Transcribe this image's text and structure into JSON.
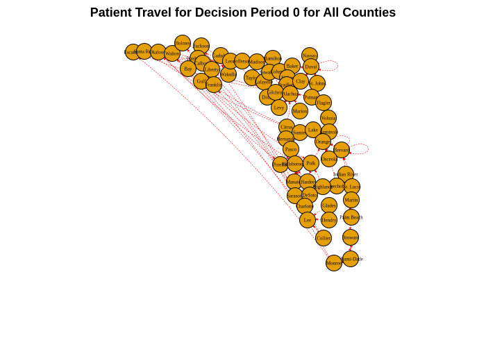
{
  "title": "Patient Travel for Decision Period 0 for All Counties",
  "colors": {
    "node_fill": "#E69F00",
    "node_stroke": "#000000",
    "edge": "#FF0000"
  },
  "nodes": [
    "Escambia",
    "Santa Rosa",
    "Okaloosa",
    "Walton",
    "Holmes",
    "Jackson",
    "Washington",
    "Calhoun",
    "Bay",
    "Liberty",
    "Gadsden",
    "Gulf",
    "Franklin",
    "Wakulla",
    "Leon",
    "Jefferson",
    "Madison",
    "Hamilton",
    "Taylor",
    "Lafayette",
    "Suwannee",
    "Columbia",
    "Baker",
    "Nassau",
    "Duval",
    "Union",
    "Bradford",
    "Clay",
    "St. Johns",
    "Dixie",
    "Gilchrist",
    "Alachua",
    "Putnam",
    "Flagler",
    "Levy",
    "Marion",
    "Volusia",
    "Citrus",
    "Sumter",
    "Lake",
    "Seminole",
    "Orange",
    "Hernando",
    "Pasco",
    "Brevard",
    "Osceola",
    "Pinellas",
    "Hillsborough",
    "Polk",
    "Indian River",
    "Manatee",
    "Hardee",
    "Okeechobee",
    "St. Lucie",
    "Highlands",
    "Sarasota",
    "DeSoto",
    "Martin",
    "Charlotte",
    "Glades",
    "Palm Beach",
    "Lee",
    "Hendry",
    "Broward",
    "Collier",
    "Miami-Dade",
    "Monroe"
  ],
  "edges": [
    [
      "Escambia",
      "Alachua"
    ],
    [
      "Escambia",
      "Leon"
    ],
    [
      "Santa Rosa",
      "Orange"
    ],
    [
      "Santa Rosa",
      "Leon"
    ],
    [
      "Okaloosa",
      "Hillsborough"
    ],
    [
      "Okaloosa",
      "Alachua"
    ],
    [
      "Walton",
      "Pinellas"
    ],
    [
      "Walton",
      "Leon"
    ],
    [
      "Holmes",
      "Leon"
    ],
    [
      "Jackson",
      "Leon"
    ],
    [
      "Washington",
      "Leon"
    ],
    [
      "Calhoun",
      "Leon"
    ],
    [
      "Bay",
      "Leon"
    ],
    [
      "Bay",
      "Sumter"
    ],
    [
      "Liberty",
      "Leon"
    ],
    [
      "Gadsden",
      "Leon"
    ],
    [
      "Gulf",
      "Leon"
    ],
    [
      "Gulf",
      "Polk"
    ],
    [
      "Franklin",
      "Leon"
    ],
    [
      "Wakulla",
      "Leon"
    ],
    [
      "Jefferson",
      "Leon"
    ],
    [
      "Madison",
      "Leon"
    ],
    [
      "Taylor",
      "Leon"
    ],
    [
      "Hamilton",
      "Alachua"
    ],
    [
      "Lafayette",
      "Alachua"
    ],
    [
      "Suwannee",
      "Alachua"
    ],
    [
      "Columbia",
      "Alachua"
    ],
    [
      "Baker",
      "Duval"
    ],
    [
      "Nassau",
      "Duval"
    ],
    [
      "Union",
      "Alachua"
    ],
    [
      "Bradford",
      "Alachua"
    ],
    [
      "Clay",
      "Duval"
    ],
    [
      "St. Johns",
      "Duval"
    ],
    [
      "Dixie",
      "Alachua"
    ],
    [
      "Gilchrist",
      "Alachua"
    ],
    [
      "Putnam",
      "Alachua"
    ],
    [
      "Flagler",
      "Volusia"
    ],
    [
      "Levy",
      "Alachua"
    ],
    [
      "Marion",
      "Alachua"
    ],
    [
      "Citrus",
      "Alachua"
    ],
    [
      "Sumter",
      "Lake"
    ],
    [
      "Lake",
      "Orange"
    ],
    [
      "Seminole",
      "Orange"
    ],
    [
      "Hernando",
      "Pasco"
    ],
    [
      "Hernando",
      "Hillsborough"
    ],
    [
      "Pasco",
      "Hillsborough"
    ],
    [
      "Brevard",
      "Orange"
    ],
    [
      "Osceola",
      "Orange"
    ],
    [
      "Pinellas",
      "Hillsborough"
    ],
    [
      "Polk",
      "Hillsborough"
    ],
    [
      "Polk",
      "Orange"
    ],
    [
      "Indian River",
      "Brevard"
    ],
    [
      "Manatee",
      "Hillsborough"
    ],
    [
      "Hardee",
      "Polk"
    ],
    [
      "Okeechobee",
      "Orange"
    ],
    [
      "St. Lucie",
      "Brevard"
    ],
    [
      "Highlands",
      "Polk"
    ],
    [
      "Sarasota",
      "Hillsborough"
    ],
    [
      "DeSoto",
      "Hillsborough"
    ],
    [
      "Martin",
      "Palm Beach"
    ],
    [
      "Charlotte",
      "Lee"
    ],
    [
      "Glades",
      "Lee"
    ],
    [
      "Palm Beach",
      "Broward"
    ],
    [
      "Lee",
      "Hillsborough"
    ],
    [
      "Hendry",
      "Lee"
    ],
    [
      "Broward",
      "Miami-Dade"
    ],
    [
      "Collier",
      "Lee"
    ],
    [
      "Collier",
      "Okaloosa"
    ],
    [
      "Miami-Dade",
      "Broward"
    ],
    [
      "Monroe",
      "Miami-Dade"
    ],
    [
      "Monroe",
      "Escambia"
    ],
    [
      "Monroe",
      "Walton"
    ],
    [
      "Lee",
      "Jackson"
    ],
    [
      "Collier",
      "Holmes"
    ],
    [
      "Charlotte",
      "Gulf"
    ],
    [
      "Sarasota",
      "Franklin"
    ],
    [
      "Manatee",
      "Calhoun"
    ]
  ],
  "self_loops": [
    "Duval",
    "Orange",
    "Brevard"
  ]
}
